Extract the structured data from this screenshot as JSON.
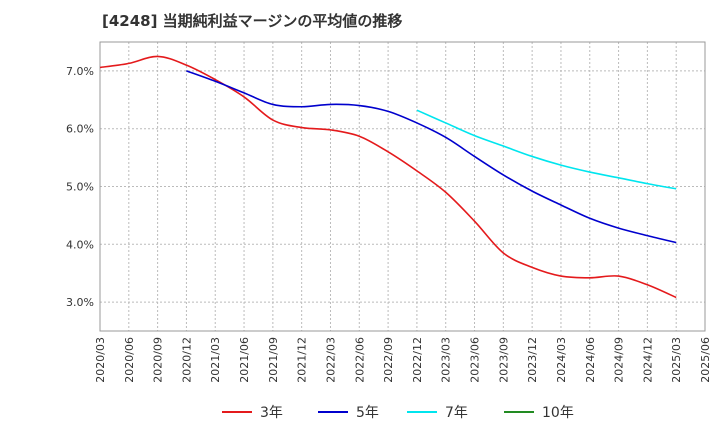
{
  "chart_data": {
    "type": "line",
    "title": "[4248]  当期純利益マージンの平均値の推移",
    "xlabel": "",
    "ylabel": "",
    "ylim": [
      2.5,
      7.5
    ],
    "xlim": [
      "2020/03",
      "2025/06"
    ],
    "grid": true,
    "legend_placement": "bottom",
    "y_ticks": [
      "3.0%",
      "4.0%",
      "5.0%",
      "6.0%",
      "7.0%"
    ],
    "y_tick_values": [
      3.0,
      4.0,
      5.0,
      6.0,
      7.0
    ],
    "x_ticks": [
      "2020/03",
      "2020/06",
      "2020/09",
      "2020/12",
      "2021/03",
      "2021/06",
      "2021/09",
      "2021/12",
      "2022/03",
      "2022/06",
      "2022/09",
      "2022/12",
      "2023/03",
      "2023/06",
      "2023/09",
      "2023/12",
      "2024/03",
      "2024/06",
      "2024/09",
      "2024/12",
      "2025/03",
      "2025/06"
    ],
    "series": [
      {
        "name": "3年",
        "color": "#e41a1c",
        "points": [
          [
            "2020/03",
            7.06
          ],
          [
            "2020/06",
            7.13
          ],
          [
            "2020/09",
            7.25
          ],
          [
            "2020/12",
            7.1
          ],
          [
            "2021/03",
            6.85
          ],
          [
            "2021/06",
            6.55
          ],
          [
            "2021/09",
            6.15
          ],
          [
            "2021/12",
            6.02
          ],
          [
            "2022/03",
            5.98
          ],
          [
            "2022/06",
            5.87
          ],
          [
            "2022/09",
            5.6
          ],
          [
            "2022/12",
            5.27
          ],
          [
            "2023/03",
            4.9
          ],
          [
            "2023/06",
            4.4
          ],
          [
            "2023/09",
            3.85
          ],
          [
            "2023/12",
            3.6
          ],
          [
            "2024/03",
            3.45
          ],
          [
            "2024/06",
            3.42
          ],
          [
            "2024/09",
            3.45
          ],
          [
            "2024/12",
            3.3
          ],
          [
            "2025/03",
            3.08
          ]
        ]
      },
      {
        "name": "5年",
        "color": "#0000cd",
        "points": [
          [
            "2020/12",
            7.0
          ],
          [
            "2021/03",
            6.82
          ],
          [
            "2021/06",
            6.62
          ],
          [
            "2021/09",
            6.42
          ],
          [
            "2021/12",
            6.38
          ],
          [
            "2022/03",
            6.42
          ],
          [
            "2022/06",
            6.4
          ],
          [
            "2022/09",
            6.3
          ],
          [
            "2022/12",
            6.1
          ],
          [
            "2023/03",
            5.85
          ],
          [
            "2023/06",
            5.52
          ],
          [
            "2023/09",
            5.2
          ],
          [
            "2023/12",
            4.92
          ],
          [
            "2024/03",
            4.68
          ],
          [
            "2024/06",
            4.45
          ],
          [
            "2024/09",
            4.28
          ],
          [
            "2024/12",
            4.15
          ],
          [
            "2025/03",
            4.03
          ]
        ]
      },
      {
        "name": "7年",
        "color": "#00e5ee",
        "points": [
          [
            "2022/12",
            6.32
          ],
          [
            "2023/03",
            6.1
          ],
          [
            "2023/06",
            5.88
          ],
          [
            "2023/09",
            5.7
          ],
          [
            "2023/12",
            5.52
          ],
          [
            "2024/03",
            5.37
          ],
          [
            "2024/06",
            5.25
          ],
          [
            "2024/09",
            5.15
          ],
          [
            "2024/12",
            5.05
          ],
          [
            "2025/03",
            4.96
          ]
        ]
      },
      {
        "name": "10年",
        "color": "#228b22",
        "points": []
      }
    ]
  }
}
